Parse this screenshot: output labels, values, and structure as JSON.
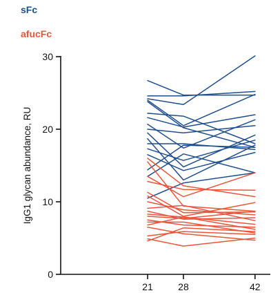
{
  "chart_data": {
    "type": "line",
    "ylabel": "IgG1 glycan abundance, RU",
    "xlabel": "",
    "x": [
      21,
      28,
      42
    ],
    "xlim": [
      4,
      45
    ],
    "ylim": [
      0,
      30
    ],
    "yticks": [
      0,
      10,
      20,
      30
    ],
    "xticks": [
      21,
      28,
      42
    ],
    "grid": false,
    "legend_position": "top-left",
    "groups": [
      {
        "name": "sFc",
        "color": "#1f4e8c",
        "lines": [
          [
            26.7,
            24.7,
            24.7
          ],
          [
            24.6,
            24.6,
            25.2
          ],
          [
            24.2,
            23.4,
            30.1
          ],
          [
            24.0,
            20.5,
            24.8
          ],
          [
            23.8,
            20.2,
            17.5
          ],
          [
            22.2,
            21.8,
            18.0
          ],
          [
            21.6,
            20.3,
            22.0
          ],
          [
            20.7,
            17.4,
            21.3
          ],
          [
            20.0,
            19.5,
            20.5
          ],
          [
            19.5,
            14.8,
            19.2
          ],
          [
            18.7,
            13.0,
            17.8
          ],
          [
            18.0,
            18.0,
            17.2
          ],
          [
            17.3,
            15.7,
            18.5
          ],
          [
            16.5,
            14.3,
            16.8
          ],
          [
            14.4,
            17.8,
            17.5
          ],
          [
            13.5,
            16.6,
            14.0
          ],
          [
            10.5,
            12.6,
            14.0
          ]
        ]
      },
      {
        "name": "afucFc",
        "color": "#e8553a",
        "lines": [
          [
            16.0,
            12.2,
            10.7
          ],
          [
            15.5,
            9.4,
            8.7
          ],
          [
            13.5,
            10.7,
            14.0
          ],
          [
            12.8,
            11.7,
            11.6
          ],
          [
            11.3,
            8.5,
            8.6
          ],
          [
            10.8,
            8.0,
            9.9
          ],
          [
            10.0,
            8.9,
            8.2
          ],
          [
            9.1,
            9.5,
            7.4
          ],
          [
            8.7,
            7.6,
            7.8
          ],
          [
            8.3,
            7.9,
            6.9
          ],
          [
            8.0,
            7.7,
            8.7
          ],
          [
            7.5,
            6.8,
            6.5
          ],
          [
            7.2,
            7.2,
            5.7
          ],
          [
            6.8,
            7.9,
            6.2
          ],
          [
            6.5,
            5.6,
            4.7
          ],
          [
            5.3,
            5.9,
            5.5
          ],
          [
            4.9,
            3.9,
            5.0
          ],
          [
            4.6,
            6.4,
            5.9
          ]
        ]
      }
    ]
  }
}
